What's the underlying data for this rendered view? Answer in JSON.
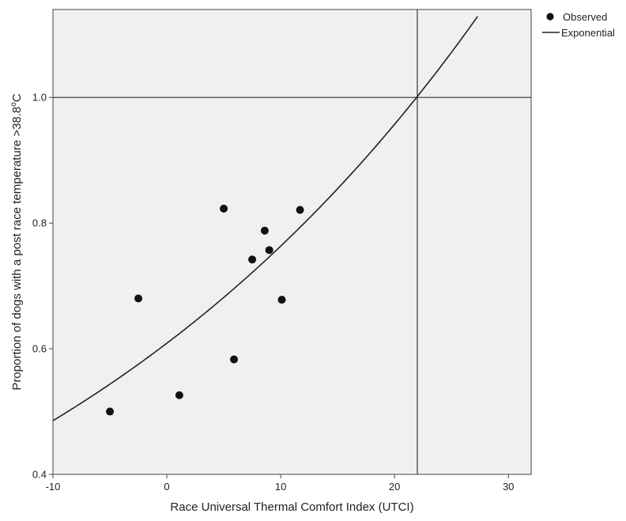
{
  "chart_data": {
    "type": "scatter",
    "xlabel": "Race Universal Thermal Comfort Index (UTCI)",
    "ylabel_main": "Proportion of dogs with a post race temperature >38.8",
    "ylabel_sup": "o",
    "ylabel_end": "C",
    "xlim": [
      -10,
      32
    ],
    "ylim": [
      0.4,
      1.14
    ],
    "x_ticks": [
      -10,
      0,
      10,
      20,
      30
    ],
    "x_tick_labels": [
      "-10",
      "0",
      "10",
      "20",
      "30"
    ],
    "y_ticks": [
      0.4,
      0.6,
      0.8,
      1.0
    ],
    "y_tick_labels": [
      "0.4",
      "0.6",
      "0.8",
      "1.0"
    ],
    "grid": false,
    "reference_lines": {
      "x": 22.0,
      "y": 1.0
    },
    "legend_position": "right",
    "series": [
      {
        "name": "Observed",
        "kind": "points",
        "points": [
          [
            -5.0,
            0.5
          ],
          [
            -2.5,
            0.68
          ],
          [
            1.1,
            0.526
          ],
          [
            5.0,
            0.823
          ],
          [
            5.9,
            0.583
          ],
          [
            7.5,
            0.742
          ],
          [
            8.6,
            0.788
          ],
          [
            9.0,
            0.757
          ],
          [
            10.1,
            0.678
          ],
          [
            11.7,
            0.821
          ]
        ]
      },
      {
        "name": "Exponential",
        "kind": "curve",
        "model": {
          "a": 0.6087,
          "b": 0.02263,
          "x_from": -10,
          "x_to": 27.3
        }
      }
    ],
    "colors": {
      "plot_background": "#f0f0f0",
      "marks": "#222222"
    }
  }
}
